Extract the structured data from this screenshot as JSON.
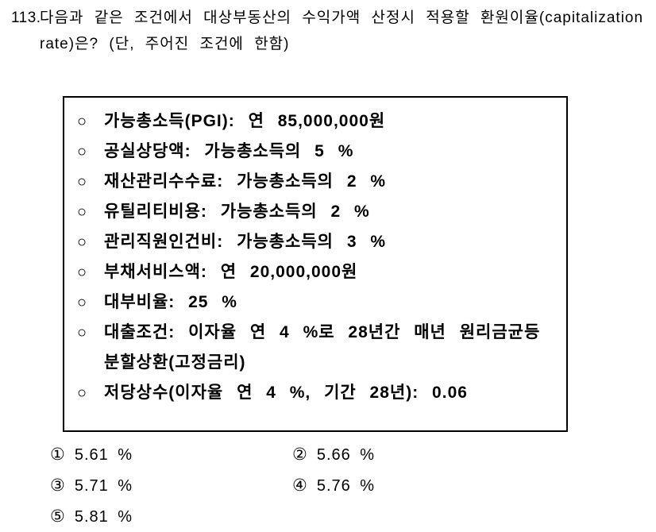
{
  "question": {
    "number": "113.",
    "text": "다음과 같은 조건에서 대상부동산의 수익가액 산정시 적용할 환원이율(capitalization rate)은? (단, 주어진 조건에 한함)"
  },
  "conditions": {
    "bullet": "○",
    "items": [
      {
        "text": "가능총소득(PGI): 연 85,000,000원"
      },
      {
        "text": "공실상당액: 가능총소득의 5 %"
      },
      {
        "text": "재산관리수수료: 가능총소득의 2 %"
      },
      {
        "text": "유틸리티비용: 가능총소득의 2 %"
      },
      {
        "text": "관리직원인건비: 가능총소득의 3 %"
      },
      {
        "text": "부채서비스액: 연 20,000,000원"
      },
      {
        "text": "대부비율: 25 %"
      },
      {
        "text": "대출조건: 이자율 연 4 %로 28년간 매년 원리금균등분할상환(고정금리)"
      },
      {
        "text": "저당상수(이자율 연 4 %, 기간 28년): 0.06"
      }
    ]
  },
  "choices": [
    {
      "marker": "①",
      "label": "5.61 %"
    },
    {
      "marker": "②",
      "label": "5.66 %"
    },
    {
      "marker": "③",
      "label": "5.71 %"
    },
    {
      "marker": "④",
      "label": "5.76 %"
    },
    {
      "marker": "⑤",
      "label": "5.81 %"
    }
  ]
}
